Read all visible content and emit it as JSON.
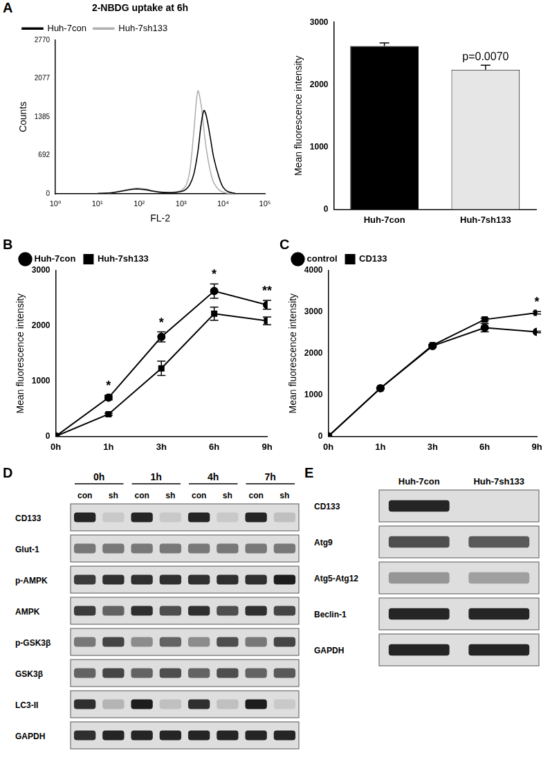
{
  "chart_data": [
    {
      "panel": "A",
      "type": "line",
      "title": "2-NBDG uptake at 6h",
      "x_label": "FL-2",
      "y_label": "Counts",
      "log": "x",
      "xlim": [
        1,
        100000
      ],
      "xticks": [
        {
          "value": 1,
          "label": "10⁰"
        },
        {
          "value": 10,
          "label": "10¹"
        },
        {
          "value": 100,
          "label": "10²"
        },
        {
          "value": 1000,
          "label": "10³"
        },
        {
          "value": 10000,
          "label": "10⁴"
        },
        {
          "value": 100000,
          "label": "10⁵"
        }
      ],
      "ylim": [
        0,
        2770
      ],
      "yticks": [
        0,
        692,
        1385,
        2077,
        2770
      ],
      "grid": false,
      "legend": "upper left",
      "x": [
        10,
        20,
        40,
        60,
        80,
        100,
        150,
        200,
        300,
        500,
        700,
        1000,
        1300,
        1600,
        2000,
        2500,
        3000,
        3500,
        4000,
        5000,
        6000,
        8000,
        10000,
        13000,
        20000
      ],
      "series": [
        {
          "name": "Huh-7con",
          "color": "#000000",
          "marker": "none",
          "values": [
            5,
            15,
            50,
            75,
            85,
            85,
            70,
            50,
            30,
            20,
            25,
            40,
            80,
            160,
            350,
            750,
            1250,
            1500,
            1400,
            1000,
            650,
            300,
            120,
            40,
            5
          ]
        },
        {
          "name": "Huh-7sh133",
          "color": "#b0b0b0",
          "marker": "none",
          "values": [
            5,
            15,
            55,
            85,
            100,
            100,
            85,
            60,
            35,
            25,
            30,
            60,
            150,
            400,
            1100,
            1850,
            1600,
            1150,
            800,
            400,
            200,
            70,
            30,
            10,
            2
          ]
        }
      ]
    },
    {
      "type": "bar",
      "y_label": "Mean fluorescence intensity",
      "categories": [
        "Huh-7con",
        "Huh-7sh133"
      ],
      "values": [
        2620,
        2240
      ],
      "errors": [
        50,
        70
      ],
      "colors": [
        "#000000",
        "#e6e6e6"
      ],
      "ylim": [
        0,
        3000
      ],
      "yticks": [
        0,
        1000,
        2000,
        3000
      ],
      "grid": false,
      "annotations": [
        {
          "category": "Huh-7sh133",
          "text": "p=0.0070"
        }
      ]
    },
    {
      "panel": "B",
      "type": "line",
      "y_label": "Mean fluorescence intensity",
      "categories": [
        "0h",
        "1h",
        "3h",
        "6h",
        "9h"
      ],
      "ylim": [
        0,
        3000
      ],
      "yticks": [
        0,
        1000,
        2000,
        3000
      ],
      "grid": false,
      "legend": "upper left",
      "series": [
        {
          "name": "Huh-7con",
          "color": "#000000",
          "marker": "circle",
          "values": [
            0,
            700,
            1800,
            2630,
            2380
          ],
          "errors": [
            0,
            40,
            90,
            130,
            80
          ]
        },
        {
          "name": "Huh-7sh133",
          "color": "#000000",
          "marker": "square",
          "values": [
            0,
            400,
            1230,
            2220,
            2090
          ],
          "errors": [
            0,
            20,
            130,
            120,
            70
          ]
        }
      ],
      "annotations": [
        {
          "category": "1h",
          "text": "*"
        },
        {
          "category": "3h",
          "text": "*"
        },
        {
          "category": "6h",
          "text": "*"
        },
        {
          "category": "9h",
          "text": "**"
        }
      ]
    },
    {
      "panel": "C",
      "type": "line",
      "y_label": "Mean fluorescence intensity",
      "categories": [
        "0h",
        "1h",
        "3h",
        "6h",
        "9h"
      ],
      "ylim": [
        0,
        4000
      ],
      "yticks": [
        0,
        1000,
        2000,
        3000,
        4000
      ],
      "grid": false,
      "legend": "upper left",
      "series": [
        {
          "name": "control",
          "color": "#000000",
          "marker": "circle",
          "values": [
            0,
            1160,
            2180,
            2620,
            2520
          ],
          "errors": [
            0,
            20,
            30,
            100,
            20
          ]
        },
        {
          "name": "CD133",
          "color": "#000000",
          "marker": "square",
          "values": [
            0,
            1160,
            2200,
            2820,
            2980
          ],
          "errors": [
            0,
            20,
            20,
            30,
            30
          ]
        }
      ],
      "annotations": [
        {
          "category": "9h",
          "text": "*"
        }
      ]
    }
  ],
  "blots": [
    {
      "panel": "D",
      "groups": [
        "0h",
        "1h",
        "4h",
        "7h"
      ],
      "lanes": [
        "con",
        "sh",
        "con",
        "sh",
        "con",
        "sh",
        "con",
        "sh"
      ],
      "rows": [
        {
          "label": "CD133",
          "intensity": [
            0.9,
            0.1,
            0.9,
            0.1,
            0.9,
            0.1,
            0.9,
            0.15
          ]
        },
        {
          "label": "Glut-1",
          "intensity": [
            0.5,
            0.5,
            0.5,
            0.5,
            0.5,
            0.5,
            0.5,
            0.5
          ]
        },
        {
          "label": "p-AMPK",
          "intensity": [
            0.8,
            0.85,
            0.85,
            0.85,
            0.85,
            0.85,
            0.85,
            0.95
          ]
        },
        {
          "label": "AMPK",
          "intensity": [
            0.8,
            0.6,
            0.85,
            0.7,
            0.85,
            0.7,
            0.85,
            0.75
          ]
        },
        {
          "label": "p-GSK3β",
          "intensity": [
            0.5,
            0.75,
            0.4,
            0.6,
            0.4,
            0.7,
            0.5,
            0.75
          ]
        },
        {
          "label": "GSK3β",
          "intensity": [
            0.6,
            0.75,
            0.6,
            0.7,
            0.6,
            0.7,
            0.6,
            0.65
          ]
        },
        {
          "label": "LC3-II",
          "intensity": [
            0.85,
            0.2,
            0.95,
            0.15,
            0.85,
            0.15,
            0.95,
            0.1
          ]
        },
        {
          "label": "GAPDH",
          "intensity": [
            0.85,
            0.9,
            0.9,
            0.9,
            0.9,
            0.9,
            0.9,
            0.9
          ]
        }
      ]
    },
    {
      "panel": "E",
      "lanes": [
        "Huh-7con",
        "Huh-7sh133"
      ],
      "rows": [
        {
          "label": "CD133",
          "intensity": [
            0.9,
            0.0
          ]
        },
        {
          "label": "Atg9",
          "intensity": [
            0.7,
            0.65
          ]
        },
        {
          "label": "Atg5-Atg12",
          "intensity": [
            0.35,
            0.3
          ]
        },
        {
          "label": "Beclin-1",
          "intensity": [
            0.9,
            0.9
          ]
        },
        {
          "label": "GAPDH",
          "intensity": [
            0.9,
            0.9
          ]
        }
      ]
    }
  ]
}
